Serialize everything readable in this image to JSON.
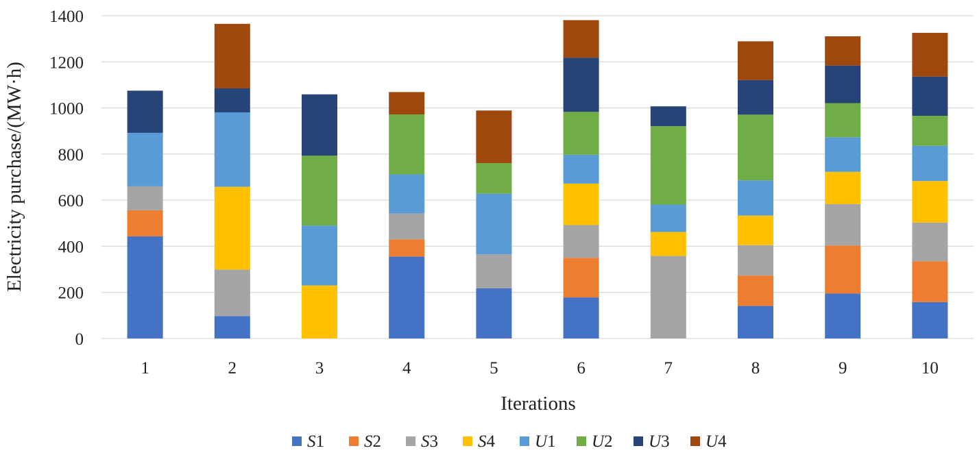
{
  "chart_data": {
    "type": "bar",
    "stacked": true,
    "xlabel": "Iterations",
    "ylabel": "Electricity purchase/(MW·h)",
    "ylim": [
      0,
      1400
    ],
    "yticks": [
      "0",
      "200",
      "400",
      "600",
      "800",
      "1000",
      "1200",
      "1400"
    ],
    "grid": true,
    "legend_position": "bottom",
    "categories": [
      "1",
      "2",
      "3",
      "4",
      "5",
      "6",
      "7",
      "8",
      "9",
      "10"
    ],
    "series": [
      {
        "name": "S1",
        "italic": "S",
        "num": "1",
        "color": "#4472c4",
        "values": [
          443,
          97,
          0,
          355,
          218,
          178,
          0,
          141,
          195,
          158
        ]
      },
      {
        "name": "S2",
        "italic": "S",
        "num": "2",
        "color": "#ed7d31",
        "values": [
          113,
          0,
          0,
          75,
          0,
          172,
          0,
          132,
          208,
          177
        ]
      },
      {
        "name": "S3",
        "italic": "S",
        "num": "3",
        "color": "#a5a5a5",
        "values": [
          104,
          202,
          0,
          112,
          147,
          142,
          358,
          132,
          180,
          168
        ]
      },
      {
        "name": "S4",
        "italic": "S",
        "num": "4",
        "color": "#ffc000",
        "values": [
          0,
          359,
          230,
          0,
          0,
          180,
          104,
          128,
          140,
          180
        ]
      },
      {
        "name": "U1",
        "italic": "U",
        "num": "1",
        "color": "#5b9bd5",
        "values": [
          232,
          323,
          260,
          170,
          263,
          125,
          119,
          153,
          150,
          153
        ]
      },
      {
        "name": "U2",
        "italic": "U",
        "num": "2",
        "color": "#70ad47",
        "values": [
          0,
          0,
          303,
          260,
          133,
          186,
          340,
          285,
          148,
          130
        ]
      },
      {
        "name": "U3",
        "italic": "U",
        "num": "3",
        "color": "#264478",
        "values": [
          183,
          104,
          266,
          0,
          0,
          235,
          86,
          150,
          163,
          170
        ]
      },
      {
        "name": "U4",
        "italic": "U",
        "num": "4",
        "color": "#9e480e",
        "values": [
          0,
          280,
          0,
          97,
          228,
          163,
          0,
          168,
          127,
          190
        ]
      }
    ]
  }
}
